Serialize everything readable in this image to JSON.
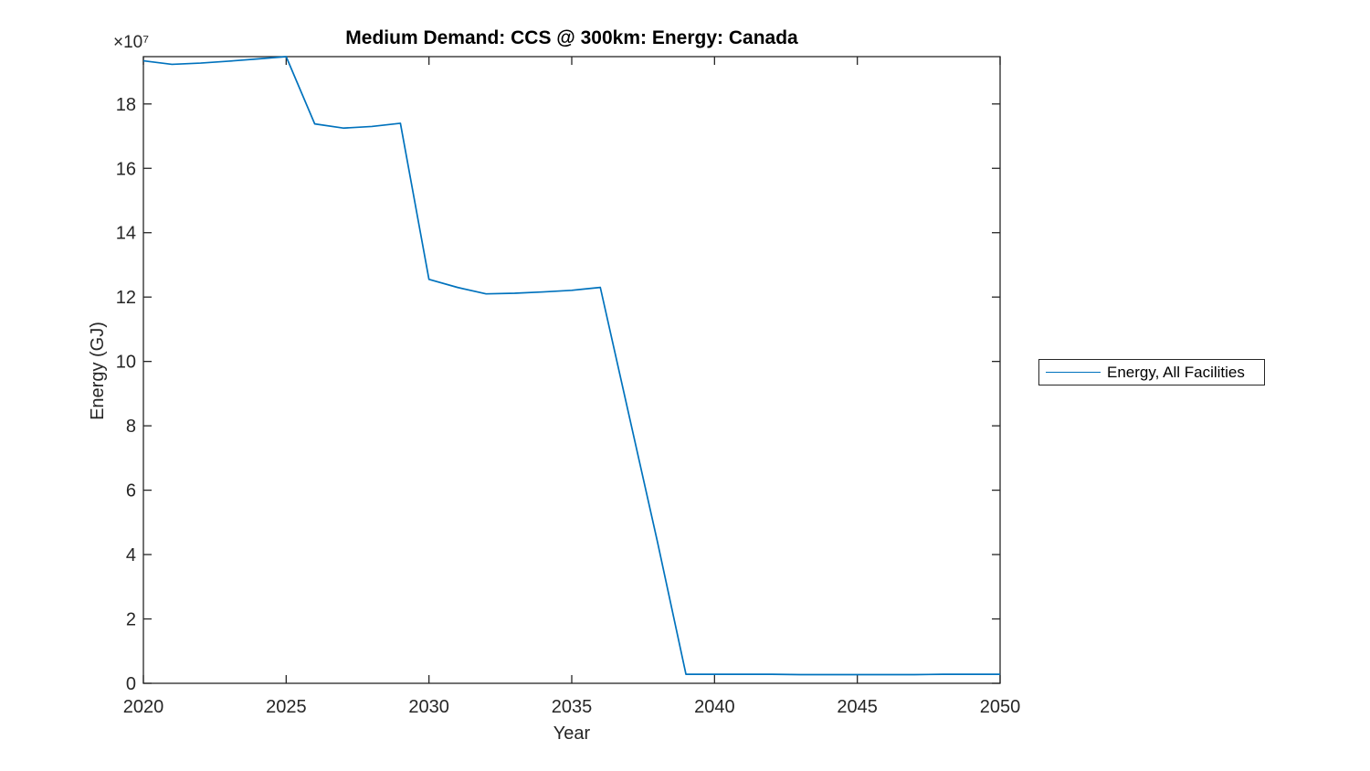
{
  "chart_data": {
    "type": "line",
    "title": "Medium Demand: CCS @ 300km: Energy: Canada",
    "xlabel": "Year",
    "ylabel": "Energy (GJ)",
    "y_multiplier_label": "×10⁷",
    "value_units": "1e7 GJ",
    "x": [
      2020,
      2021,
      2022,
      2023,
      2024,
      2025,
      2026,
      2027,
      2028,
      2029,
      2030,
      2031,
      2032,
      2033,
      2034,
      2035,
      2036,
      2037,
      2038,
      2039,
      2040,
      2041,
      2042,
      2043,
      2044,
      2045,
      2046,
      2047,
      2048,
      2049,
      2050
    ],
    "series": [
      {
        "name": "Energy, All Facilities",
        "color": "#0072BD",
        "values_e7": [
          19.34,
          19.23,
          19.27,
          19.33,
          19.4,
          19.47,
          17.38,
          17.25,
          17.3,
          17.4,
          12.55,
          12.3,
          12.1,
          12.12,
          12.16,
          12.21,
          12.3,
          8.35,
          4.4,
          0.28,
          0.28,
          0.28,
          0.28,
          0.27,
          0.27,
          0.27,
          0.27,
          0.27,
          0.28,
          0.28,
          0.28
        ]
      }
    ],
    "xlim": [
      2020,
      2050
    ],
    "ylim": [
      0,
      19.47
    ],
    "xticks": [
      2020,
      2025,
      2030,
      2035,
      2040,
      2045,
      2050
    ],
    "yticks": [
      0,
      2,
      4,
      6,
      8,
      10,
      12,
      14,
      16,
      18
    ],
    "grid": false,
    "legend_position": "right-outside",
    "axis_color": "#262626",
    "background": "#ffffff"
  },
  "legend": {
    "entries": [
      {
        "label": "Energy, All Facilities",
        "color": "#0072BD"
      }
    ]
  }
}
